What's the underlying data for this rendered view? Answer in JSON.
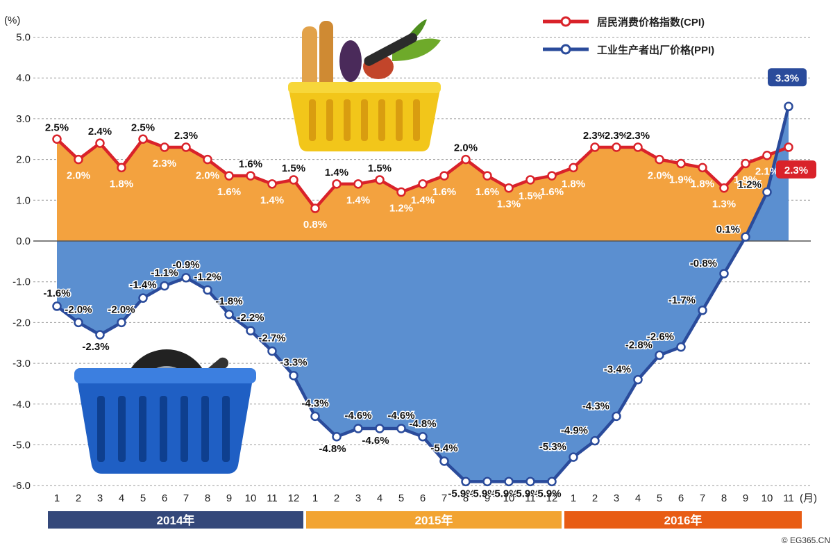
{
  "chart_data": {
    "type": "area",
    "y_unit": "(%)",
    "x_unit": "(月)",
    "ylim": [
      -6.0,
      5.0
    ],
    "yticks": [
      5.0,
      4.0,
      3.0,
      2.0,
      1.0,
      0.0,
      -1.0,
      -2.0,
      -3.0,
      -4.0,
      -5.0,
      -6.0
    ],
    "ytick_labels": [
      "5.0",
      "4.0",
      "3.0",
      "2.0",
      "1.0",
      "0.0",
      "-1.0",
      "-2.0",
      "-3.0",
      "-4.0",
      "-5.0",
      "-6.0"
    ],
    "x_labels": [
      "1",
      "2",
      "3",
      "4",
      "5",
      "6",
      "7",
      "8",
      "9",
      "10",
      "11",
      "12",
      "1",
      "2",
      "3",
      "4",
      "5",
      "6",
      "7",
      "8",
      "9",
      "10",
      "11",
      "12",
      "1",
      "2",
      "3",
      "4",
      "5",
      "6",
      "7",
      "8",
      "9",
      "10",
      "11"
    ],
    "years": [
      {
        "label": "2014年",
        "start": 0,
        "end": 11,
        "color": "#34487a"
      },
      {
        "label": "2015年",
        "start": 12,
        "end": 23,
        "color": "#f2a432"
      },
      {
        "label": "2016年",
        "start": 24,
        "end": 34,
        "color": "#e85c14"
      }
    ],
    "series": [
      {
        "name": "居民消费价格指数(CPI)",
        "color": "#d9222a",
        "fill": "#f3a23f",
        "values": [
          2.5,
          2.0,
          2.4,
          1.8,
          2.5,
          2.3,
          2.3,
          2.0,
          1.6,
          1.6,
          1.4,
          1.5,
          0.8,
          1.4,
          1.4,
          1.5,
          1.2,
          1.4,
          1.6,
          2.0,
          1.6,
          1.3,
          1.5,
          1.6,
          1.8,
          2.3,
          2.3,
          2.3,
          2.0,
          1.9,
          1.8,
          1.3,
          1.9,
          2.1,
          2.3
        ],
        "labels": [
          "2.5%",
          "2.0%",
          "2.4%",
          "1.8%",
          "2.5%",
          "2.3%",
          "2.3%",
          "2.0%",
          "1.6%",
          "1.6%",
          "1.4%",
          "1.5%",
          "0.8%",
          "1.4%",
          "1.4%",
          "1.5%",
          "1.2%",
          "1.4%",
          "1.6%",
          "2.0%",
          "1.6%",
          "1.3%",
          "1.5%",
          "1.6%",
          "1.8%",
          "2.3%",
          "2.3%",
          "2.3%",
          "2.0%",
          "1.9%",
          "1.8%",
          "1.3%",
          "1.9%",
          "2.1%",
          "2.3%"
        ]
      },
      {
        "name": "工业生产者出厂价格(PPI)",
        "color": "#2a4b9b",
        "fill": "#5b8fd0",
        "values": [
          -1.6,
          -2.0,
          -2.3,
          -2.0,
          -1.4,
          -1.1,
          -0.9,
          -1.2,
          -1.8,
          -2.2,
          -2.7,
          -3.3,
          -4.3,
          -4.8,
          -4.6,
          -4.6,
          -4.6,
          -4.8,
          -5.4,
          -5.9,
          -5.9,
          -5.9,
          -5.9,
          -5.9,
          -5.3,
          -4.9,
          -4.3,
          -3.4,
          -2.8,
          -2.6,
          -1.7,
          -0.8,
          0.1,
          1.2,
          3.3
        ],
        "labels": [
          "-1.6%",
          "-2.0%",
          "-2.3%",
          "-2.0%",
          "-1.4%",
          "-1.1%",
          "-0.9%",
          "-1.2%",
          "-1.8%",
          "-2.2%",
          "-2.7%",
          "-3.3%",
          "-4.3%",
          "-4.8%",
          "-4.6%",
          "-4.6%",
          "-4.6%",
          "-4.8%",
          "-5.4%",
          "-5.9%",
          "-5.9%",
          "-5.9%",
          "-5.9%",
          "-5.9%",
          "-5.3%",
          "-4.9%",
          "-4.3%",
          "-3.4%",
          "-2.8%",
          "-2.6%",
          "-1.7%",
          "-0.8%",
          "0.1%",
          "1.2%",
          "3.3%"
        ]
      }
    ],
    "legend_position": "top-right",
    "grid": true
  },
  "copyright": "© EG365.CN"
}
